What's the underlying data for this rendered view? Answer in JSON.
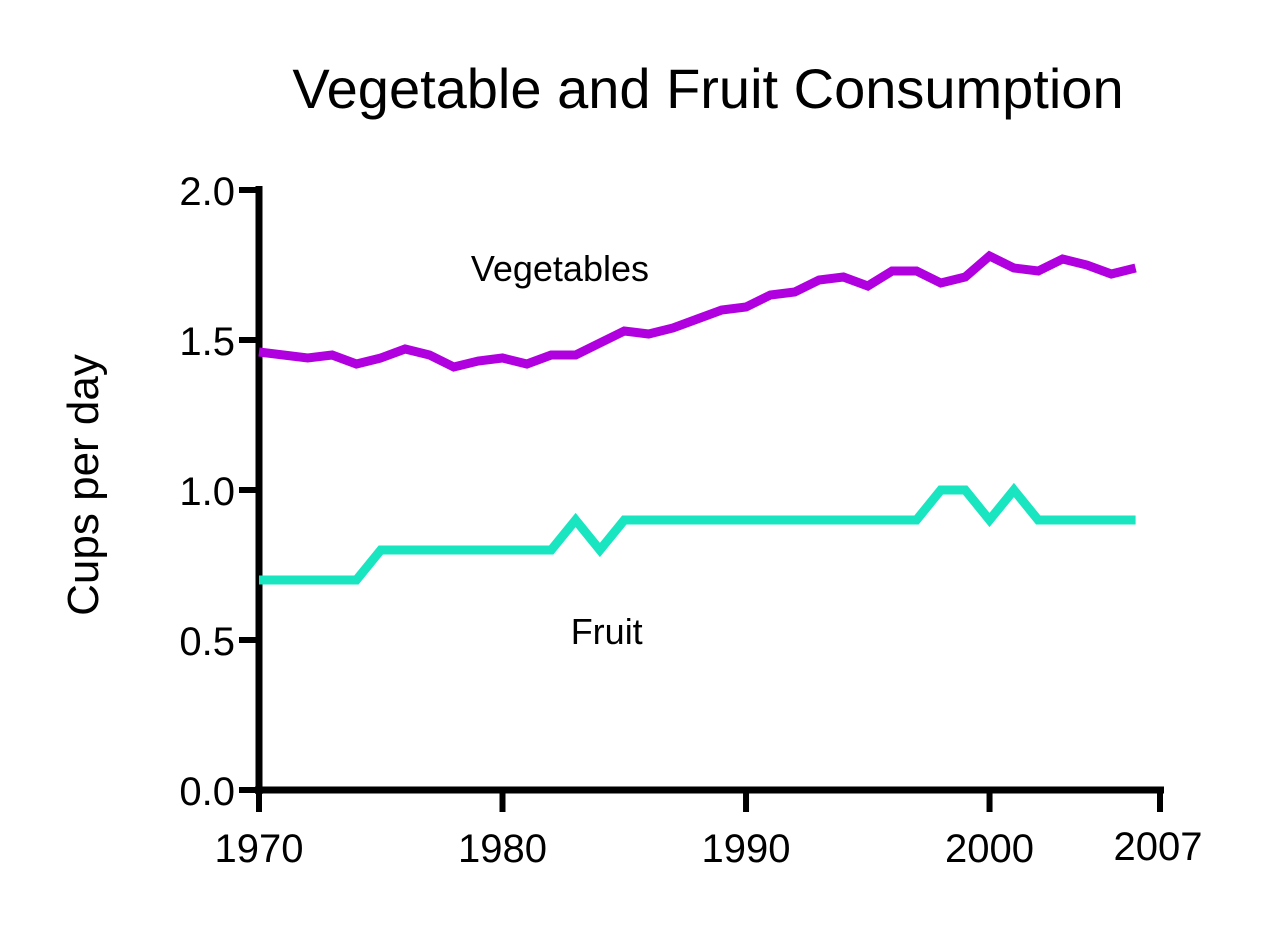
{
  "chart_data": {
    "type": "line",
    "title": "Vegetable and Fruit Consumption",
    "xlabel": "",
    "ylabel": "Cups per day",
    "xlim": [
      1970,
      2007
    ],
    "ylim": [
      0,
      2.0
    ],
    "x_ticks": [
      1970,
      1980,
      1990,
      2000,
      2007
    ],
    "x_tick_labels": [
      "1970",
      "1980",
      "1990",
      "2000",
      "2007"
    ],
    "y_ticks": [
      0,
      0.5,
      1.0,
      1.5,
      2.0
    ],
    "y_tick_labels": [
      "0.0",
      "0.5",
      "1.0",
      "1.5",
      "2.0"
    ],
    "grid": false,
    "x": [
      1970,
      1971,
      1972,
      1973,
      1974,
      1975,
      1976,
      1977,
      1978,
      1979,
      1980,
      1981,
      1982,
      1983,
      1984,
      1985,
      1986,
      1987,
      1988,
      1989,
      1990,
      1991,
      1992,
      1993,
      1994,
      1995,
      1996,
      1997,
      1998,
      1999,
      2000,
      2001,
      2002,
      2003,
      2004,
      2005,
      2006
    ],
    "series": [
      {
        "name": "Vegetables",
        "color": "#b000e0",
        "values": [
          1.46,
          1.45,
          1.44,
          1.45,
          1.42,
          1.44,
          1.47,
          1.45,
          1.41,
          1.43,
          1.44,
          1.42,
          1.45,
          1.45,
          1.49,
          1.53,
          1.52,
          1.54,
          1.57,
          1.6,
          1.61,
          1.65,
          1.66,
          1.7,
          1.71,
          1.68,
          1.73,
          1.73,
          1.69,
          1.71,
          1.78,
          1.74,
          1.73,
          1.77,
          1.75,
          1.72,
          1.74
        ]
      },
      {
        "name": "Fruit",
        "color": "#19e5c0",
        "values": [
          0.7,
          0.7,
          0.7,
          0.7,
          0.7,
          0.8,
          0.8,
          0.8,
          0.8,
          0.8,
          0.8,
          0.8,
          0.8,
          0.9,
          0.8,
          0.9,
          0.9,
          0.9,
          0.9,
          0.9,
          0.9,
          0.9,
          0.9,
          0.9,
          0.9,
          0.9,
          0.9,
          0.9,
          1.0,
          1.0,
          0.9,
          1.0,
          0.9,
          0.9,
          0.9,
          0.9,
          0.9
        ]
      }
    ],
    "annotations": [
      {
        "text": "Vegetables",
        "x": 1978.7,
        "y": 1.74
      },
      {
        "text": "Fruit",
        "x": 1982.8,
        "y": 0.53
      }
    ]
  }
}
